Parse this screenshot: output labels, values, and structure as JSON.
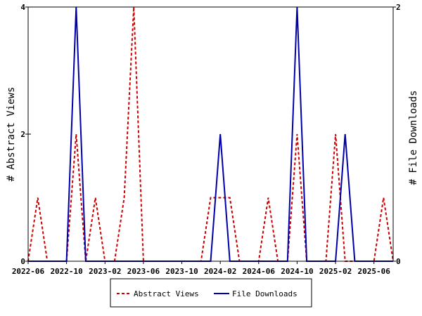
{
  "chart_data": {
    "type": "line",
    "xlabels": [
      "2022-06",
      "2022-10",
      "2023-02",
      "2023-06",
      "2023-10",
      "2024-02",
      "2024-06",
      "2024-10",
      "2025-02",
      "2025-06"
    ],
    "x": [
      "2022-06",
      "2022-07",
      "2022-08",
      "2022-09",
      "2022-10",
      "2022-11",
      "2022-12",
      "2023-01",
      "2023-02",
      "2023-03",
      "2023-04",
      "2023-05",
      "2023-06",
      "2023-07",
      "2023-08",
      "2023-09",
      "2023-10",
      "2023-11",
      "2023-12",
      "2024-01",
      "2024-02",
      "2024-03",
      "2024-04",
      "2024-05",
      "2024-06",
      "2024-07",
      "2024-08",
      "2024-09",
      "2024-10",
      "2024-11",
      "2024-12",
      "2025-01",
      "2025-02",
      "2025-03",
      "2025-04",
      "2025-05",
      "2025-06",
      "2025-07",
      "2025-08"
    ],
    "series": [
      {
        "name": "Abstract Views",
        "axis": "left",
        "color": "#cc0000",
        "dashed": true,
        "values": [
          0,
          1,
          0,
          0,
          0,
          2,
          0,
          1,
          0,
          0,
          1,
          4,
          0,
          0,
          0,
          0,
          0,
          0,
          0,
          1,
          1,
          1,
          0,
          0,
          0,
          1,
          0,
          0,
          2,
          0,
          0,
          0,
          2,
          0,
          0,
          0,
          0,
          1,
          0
        ]
      },
      {
        "name": "File Downloads",
        "axis": "right",
        "color": "#0000aa",
        "dashed": false,
        "values": [
          0,
          0,
          0,
          0,
          0,
          2,
          0,
          0,
          0,
          0,
          0,
          0,
          0,
          0,
          0,
          0,
          0,
          0,
          0,
          0,
          1,
          0,
          0,
          0,
          0,
          0,
          0,
          0,
          2,
          0,
          0,
          0,
          0,
          1,
          0,
          0,
          0,
          0,
          0
        ]
      }
    ],
    "ylabel": "# Abstract Views",
    "y2label": "# File Downloads",
    "ylim": [
      0,
      4
    ],
    "y2lim": [
      0,
      2
    ],
    "yticks": [
      "0",
      "2",
      "4"
    ],
    "y2ticks": [
      "0",
      "2"
    ],
    "legend_position": "bottom-center"
  }
}
